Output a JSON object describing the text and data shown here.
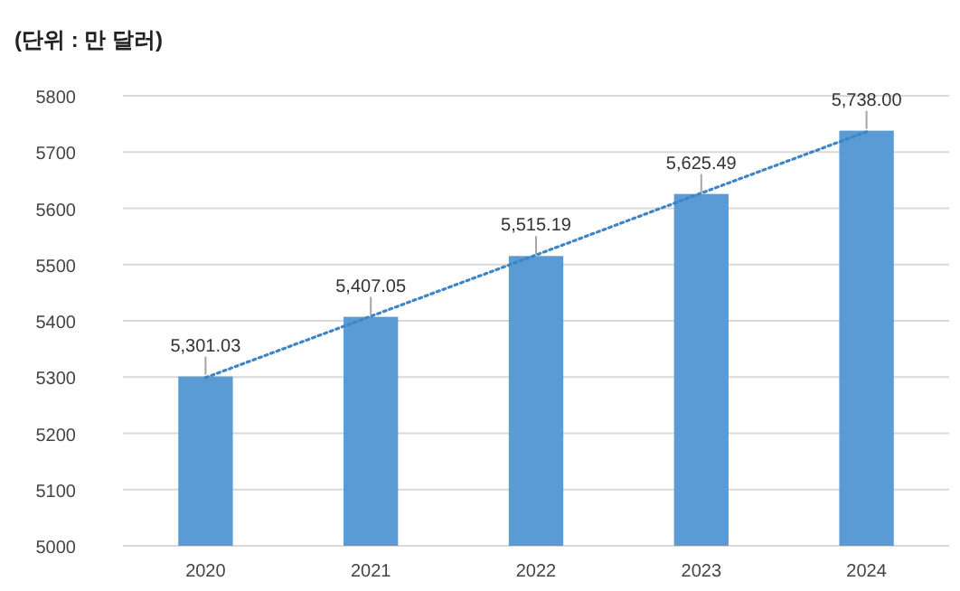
{
  "chart_data": {
    "type": "bar",
    "title": "(단위 : 만 달러)",
    "categories": [
      "2020",
      "2021",
      "2022",
      "2023",
      "2024"
    ],
    "series": [
      {
        "color": "#5b9bd5",
        "values": [
          5301.03,
          5407.05,
          5515.19,
          5625.49,
          5738.0
        ],
        "value_labels": [
          "5,301.03",
          "5,407.05",
          "5,515.19",
          "5,625.49",
          "5,738.00"
        ]
      },
      {
        "type": "line",
        "color": "#3d85c6",
        "line_style": "dotted",
        "values": [
          5299,
          5408,
          5517,
          5627,
          5736
        ]
      }
    ],
    "ylim": [
      5000,
      5800
    ],
    "yticks": [
      5000,
      5100,
      5200,
      5300,
      5400,
      5500,
      5600,
      5700,
      5800
    ],
    "grid": "y"
  }
}
